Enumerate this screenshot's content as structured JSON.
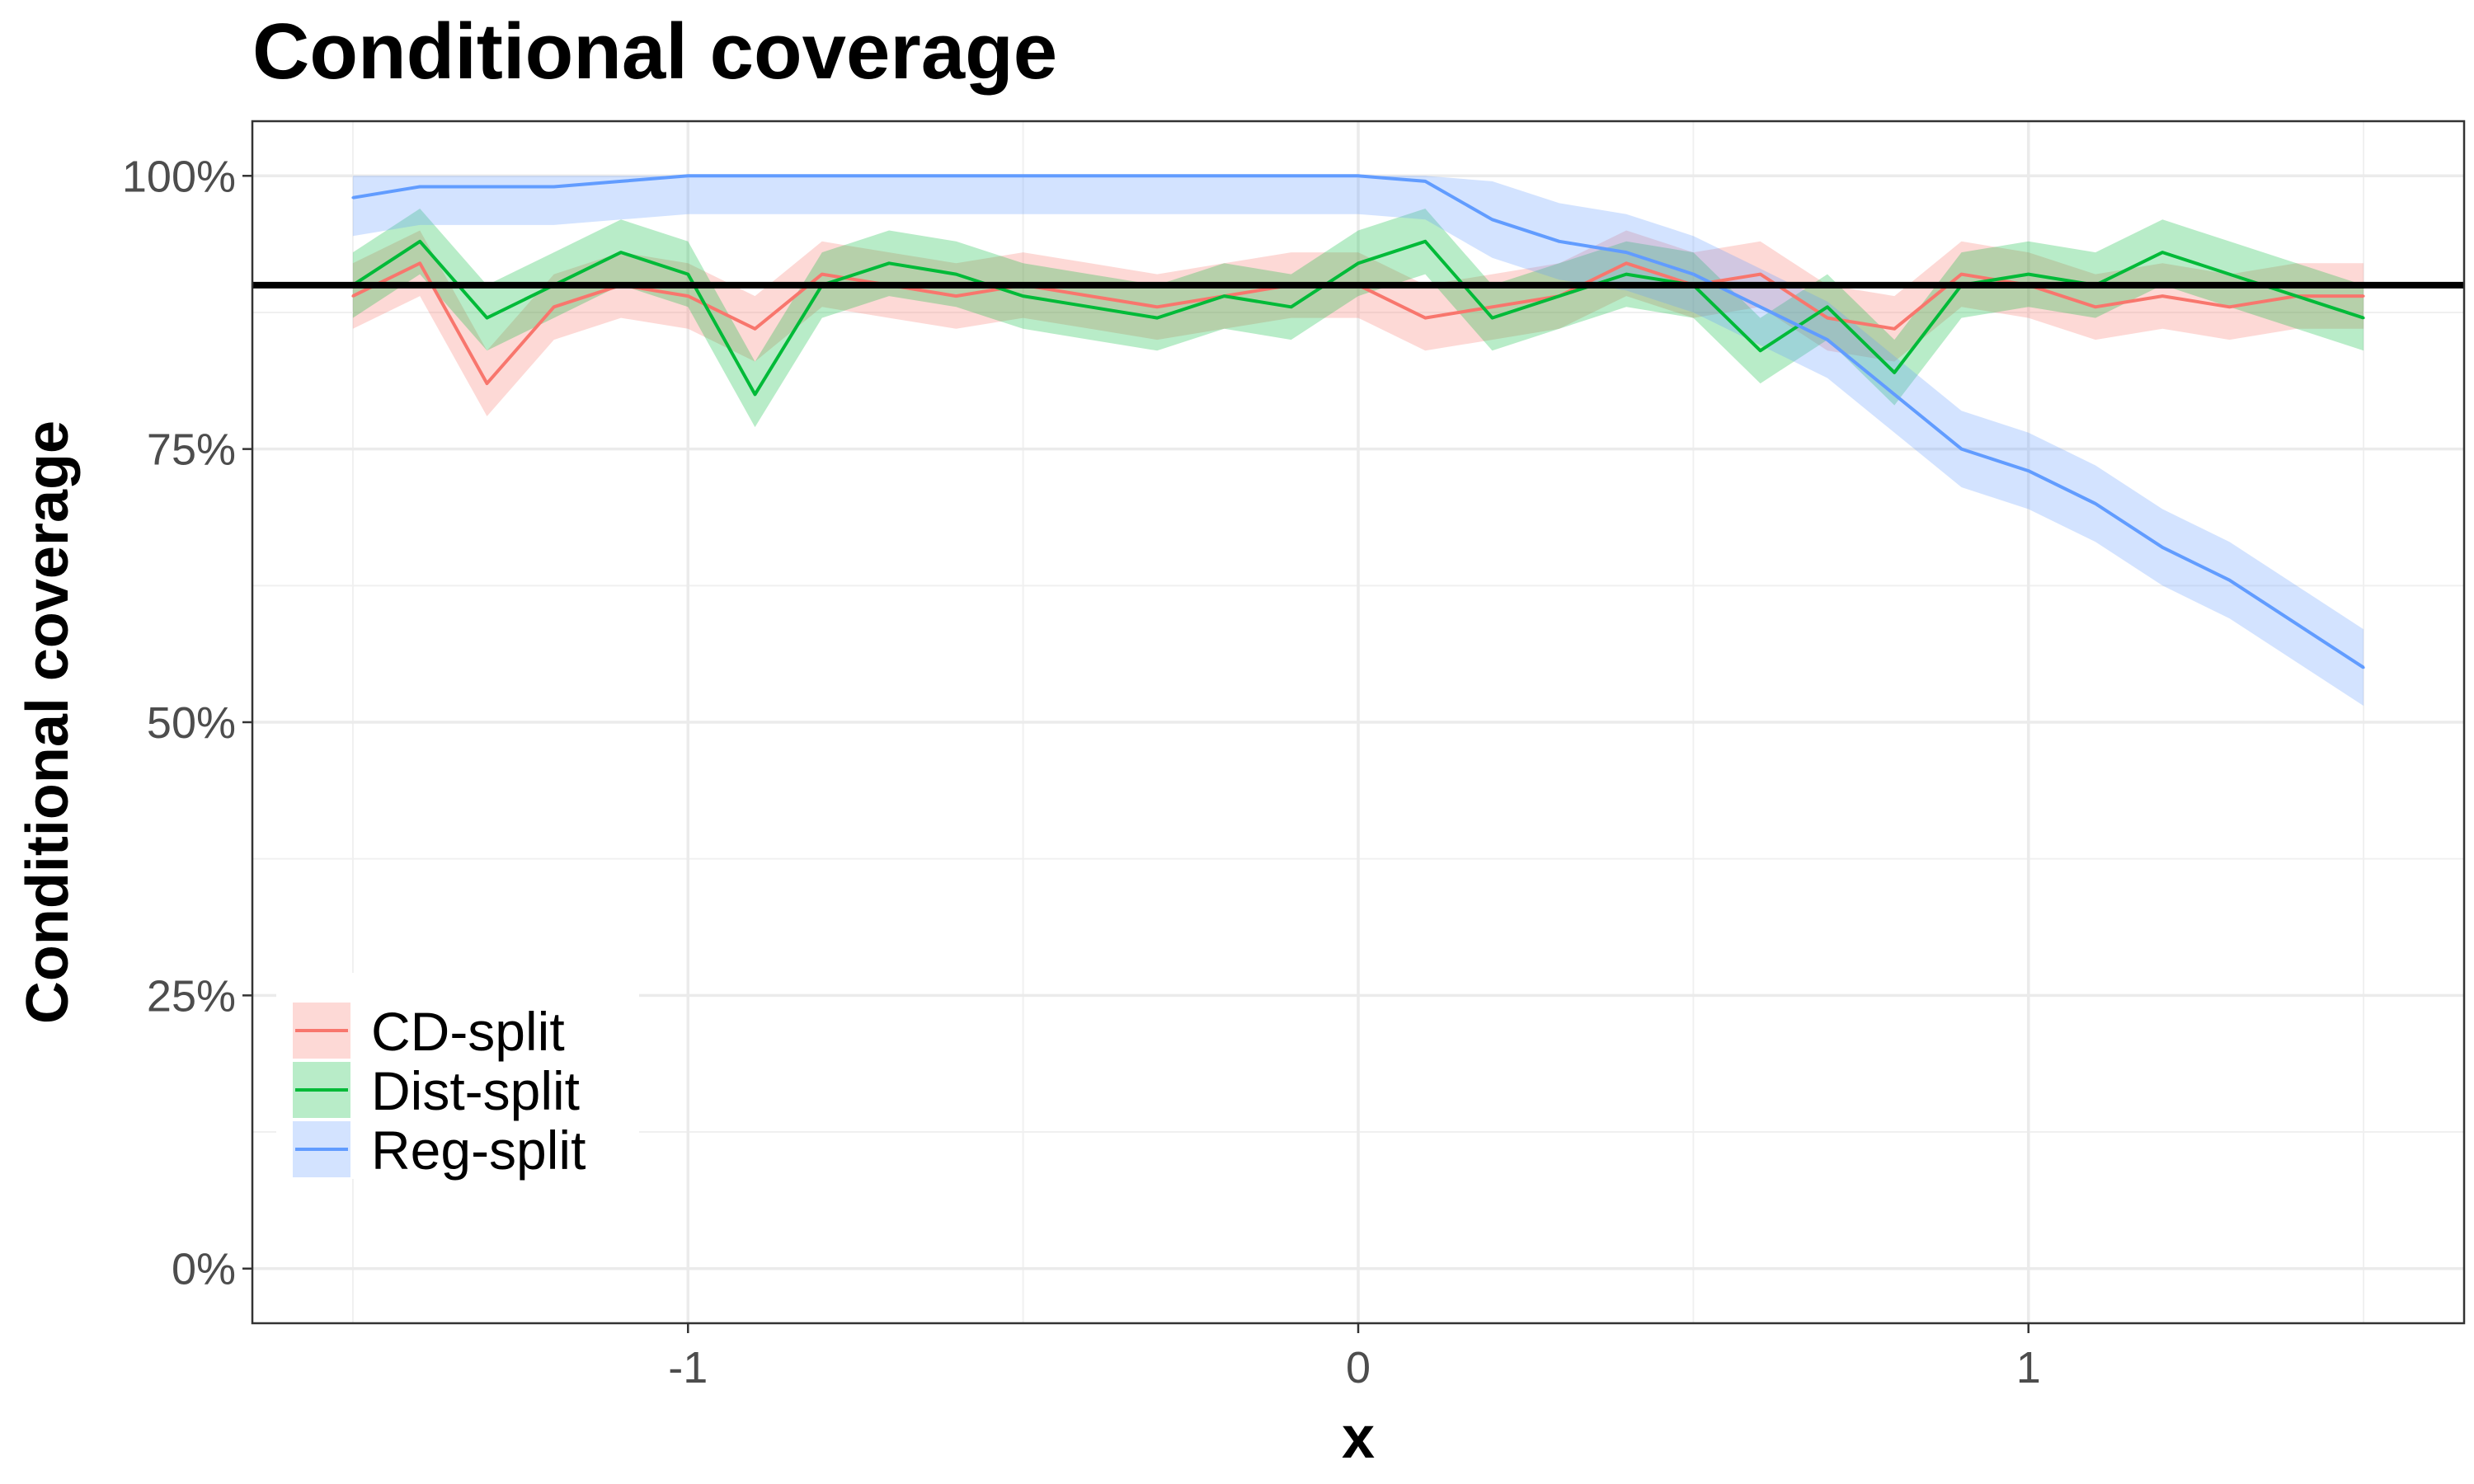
{
  "chart_data": {
    "type": "line",
    "title": "Conditional coverage",
    "xlabel": "x",
    "ylabel": "Conditional coverage",
    "xlim": [
      -1.65,
      1.65
    ],
    "ylim": [
      -0.05,
      1.05
    ],
    "x_ticks": [
      {
        "value": -1,
        "label": "-1"
      },
      {
        "value": 0,
        "label": "0"
      },
      {
        "value": 1,
        "label": "1"
      }
    ],
    "y_ticks": [
      {
        "value": 0,
        "label": "0%"
      },
      {
        "value": 0.25,
        "label": "25%"
      },
      {
        "value": 0.5,
        "label": "50%"
      },
      {
        "value": 0.75,
        "label": "75%"
      },
      {
        "value": 1,
        "label": "100%"
      }
    ],
    "grid": true,
    "legend_position": "bottom-left",
    "reference_line": {
      "y": 0.9,
      "color": "#000000"
    },
    "x": [
      -1.5,
      -1.4,
      -1.3,
      -1.2,
      -1.1,
      -1.0,
      -0.9,
      -0.8,
      -0.7,
      -0.6,
      -0.5,
      -0.4,
      -0.3,
      -0.2,
      -0.1,
      0.0,
      0.1,
      0.2,
      0.3,
      0.4,
      0.5,
      0.6,
      0.7,
      0.8,
      0.9,
      1.0,
      1.1,
      1.2,
      1.3,
      1.4,
      1.5
    ],
    "series": [
      {
        "name": "CD-split",
        "color": "#f8766d",
        "band_color": "#f8766d",
        "values": [
          0.89,
          0.92,
          0.81,
          0.88,
          0.9,
          0.89,
          0.86,
          0.91,
          0.9,
          0.89,
          0.9,
          0.89,
          0.88,
          0.89,
          0.9,
          0.9,
          0.87,
          0.88,
          0.89,
          0.92,
          0.9,
          0.91,
          0.87,
          0.86,
          0.91,
          0.9,
          0.88,
          0.89,
          0.88,
          0.89,
          0.89
        ],
        "band_halfwidth": 0.03
      },
      {
        "name": "Dist-split",
        "color": "#00ba38",
        "band_color": "#00ba38",
        "values": [
          0.9,
          0.94,
          0.87,
          0.9,
          0.93,
          0.91,
          0.8,
          0.9,
          0.92,
          0.91,
          0.89,
          0.88,
          0.87,
          0.89,
          0.88,
          0.92,
          0.94,
          0.87,
          0.89,
          0.91,
          0.9,
          0.84,
          0.88,
          0.82,
          0.9,
          0.91,
          0.9,
          0.93,
          0.91,
          0.89,
          0.87
        ],
        "band_halfwidth": 0.03
      },
      {
        "name": "Reg-split",
        "color": "#619cff",
        "band_color": "#619cff",
        "values": [
          0.98,
          0.99,
          0.99,
          0.99,
          0.995,
          1.0,
          1.0,
          1.0,
          1.0,
          1.0,
          1.0,
          1.0,
          1.0,
          1.0,
          1.0,
          1.0,
          0.995,
          0.96,
          0.94,
          0.93,
          0.91,
          0.88,
          0.85,
          0.8,
          0.75,
          0.73,
          0.7,
          0.66,
          0.63,
          0.59,
          0.55
        ],
        "band_halfwidth": 0.035
      }
    ]
  }
}
